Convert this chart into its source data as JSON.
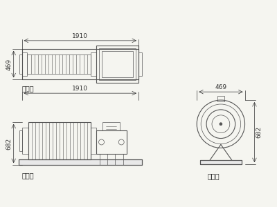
{
  "title": "",
  "bg_color": "#f5f5f0",
  "line_color": "#555555",
  "dim_color": "#333333",
  "label_color": "#222222",
  "dim_1910": "1910",
  "dim_469": "469",
  "dim_682": "682",
  "label_top": "顶视图",
  "label_front": "正视图",
  "label_side": "侧视图",
  "font_size_label": 7,
  "font_size_dim": 6.5,
  "lw_main": 0.8,
  "lw_thin": 0.5,
  "lw_dim": 0.5
}
